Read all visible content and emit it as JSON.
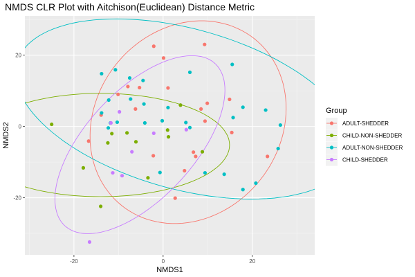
{
  "chart_data": {
    "type": "scatter",
    "title": "NMDS CLR Plot with Aitchison(Euclidean) Distance Metric",
    "xlabel": "NMDS1",
    "ylabel": "NMDS2",
    "xlim": [
      -31,
      34
    ],
    "ylim": [
      -36,
      31
    ],
    "x_ticks": [
      -20,
      0,
      20
    ],
    "y_ticks": [
      -20,
      0,
      20
    ],
    "grid": true,
    "legend": {
      "title": "Group",
      "position": "right"
    },
    "series": [
      {
        "name": "ADULT-SHEDDER",
        "color": "#F8766D",
        "points": [
          [
            -2.1,
            22.5
          ],
          [
            9.3,
            23.0
          ],
          [
            0.1,
            19.2
          ],
          [
            -13.9,
            3.2
          ],
          [
            -16.7,
            -4.1
          ],
          [
            -10.1,
            9.0
          ],
          [
            -7.9,
            11.2
          ],
          [
            -5.3,
            10.9
          ],
          [
            -6.2,
            4.9
          ],
          [
            1.1,
            10.8
          ],
          [
            8.5,
            4.9
          ],
          [
            9.9,
            6.5
          ],
          [
            9.4,
            1.5
          ],
          [
            14.9,
            7.6
          ],
          [
            15.4,
            -1.7
          ],
          [
            -2.2,
            -8.2
          ],
          [
            4.8,
            -12.4
          ],
          [
            7.3,
            -8.4
          ],
          [
            23.4,
            -8.4
          ],
          [
            6.8,
            -7.2
          ],
          [
            2.7,
            -20.1
          ]
        ]
      },
      {
        "name": "CHILD-NON-SHEDDER",
        "color": "#7CAE00",
        "points": [
          [
            -25.0,
            0.6
          ],
          [
            -17.9,
            -11.6
          ],
          [
            -14.0,
            -22.4
          ],
          [
            -12.4,
            -4.6
          ],
          [
            -11.5,
            -2.0
          ],
          [
            -8.1,
            -1.8
          ],
          [
            -6.1,
            -4.3
          ],
          [
            -3.4,
            -14.4
          ],
          [
            1.2,
            -2.9
          ],
          [
            1.0,
            -1.0
          ],
          [
            3.9,
            6.0
          ],
          [
            8.8,
            -7.1
          ]
        ]
      },
      {
        "name": "ADULT-NON-SHEDDER",
        "color": "#00BFC4",
        "points": [
          [
            -13.8,
            14.8
          ],
          [
            -10.7,
            15.9
          ],
          [
            -12.2,
            7.4
          ],
          [
            -11.8,
            1.0
          ],
          [
            -12.3,
            -0.4
          ],
          [
            -7.5,
            13.6
          ],
          [
            -7.3,
            7.7
          ],
          [
            -4.5,
            12.9
          ],
          [
            -4.3,
            6.3
          ],
          [
            -4.1,
            1.0
          ],
          [
            -0.2,
            1.6
          ],
          [
            1.1,
            5.3
          ],
          [
            5.1,
            1.1
          ],
          [
            6.0,
            15.2
          ],
          [
            6.0,
            -0.3
          ],
          [
            -0.7,
            -12.9
          ],
          [
            9.4,
            -13.0
          ],
          [
            13.7,
            -13.4
          ],
          [
            15.5,
            17.4
          ],
          [
            15.7,
            2.5
          ],
          [
            17.9,
            5.4
          ],
          [
            23.0,
            4.6
          ],
          [
            26.3,
            0.4
          ],
          [
            25.8,
            -6.2
          ],
          [
            20.8,
            -15.9
          ],
          [
            17.9,
            -17.7
          ],
          [
            -13.8,
            3.8
          ],
          [
            -10.3,
            1.2
          ]
        ]
      },
      {
        "name": "CHILD-SHEDDER",
        "color": "#C77CFF",
        "points": [
          [
            -11.7,
            1.0
          ],
          [
            -9.8,
            4.1
          ],
          [
            -7.0,
            -7.1
          ],
          [
            -2.1,
            -1.9
          ],
          [
            -11.3,
            -13.0
          ],
          [
            -9.2,
            -13.8
          ],
          [
            -16.5,
            -32.4
          ],
          [
            5.2,
            -0.9
          ]
        ]
      }
    ],
    "ellipses": [
      {
        "series": "ADULT-SHEDDER",
        "center": [
          5.6,
          1.2
        ],
        "semi_axes": [
          21.5,
          28.8
        ],
        "rotation_deg": -14
      },
      {
        "series": "CHILD-NON-SHEDDER",
        "center": [
          -14.0,
          -5.2
        ],
        "semi_axes": [
          28.9,
          14.5
        ],
        "rotation_deg": 0
      },
      {
        "series": "ADULT-NON-SHEDDER",
        "center": [
          4.7,
          4.9
        ],
        "semi_axes": [
          39.8,
          22.0
        ],
        "rotation_deg": -22
      },
      {
        "series": "CHILD-SHEDDER",
        "center": [
          -5.2,
          -5.1
        ],
        "semi_axes": [
          28.5,
          13.2
        ],
        "rotation_deg": 57
      }
    ]
  }
}
